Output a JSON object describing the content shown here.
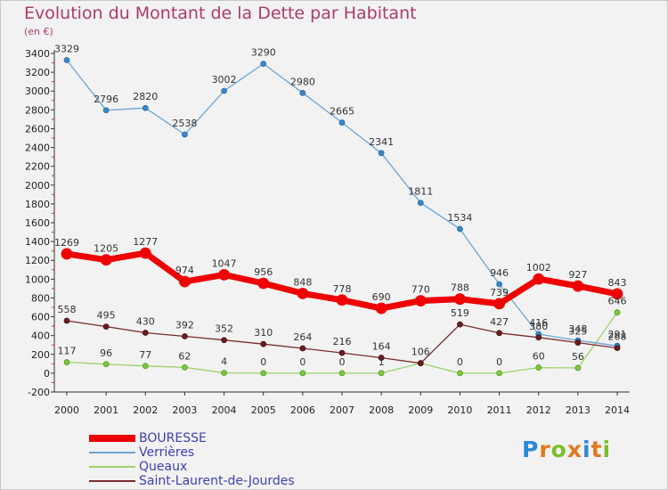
{
  "title": "Evolution du Montant de la Dette par Habitant",
  "subtitle": "(en €)",
  "logo": {
    "letters": [
      "P",
      "r",
      "o",
      "x",
      "i",
      "t",
      "i"
    ],
    "colors": [
      "#2b8ad6",
      "#e07a1f",
      "#7bbf2a",
      "#e07a1f",
      "#2b8ad6",
      "#e07a1f",
      "#7bbf2a"
    ]
  },
  "chart_data": {
    "type": "line",
    "x": [
      2000,
      2001,
      2002,
      2003,
      2004,
      2005,
      2006,
      2007,
      2008,
      2009,
      2010,
      2011,
      2012,
      2013,
      2014
    ],
    "x_tick_labels": [
      "2000",
      "2001",
      "2002",
      "2003",
      "2004",
      "2005",
      "2006",
      "2007",
      "2008",
      "2009",
      "2010",
      "2011",
      "2012",
      "2013",
      "2014"
    ],
    "ylim": [
      -200,
      3400
    ],
    "y_ticks": [
      -200,
      0,
      200,
      400,
      600,
      800,
      1000,
      1200,
      1400,
      1600,
      1800,
      2000,
      2200,
      2400,
      2600,
      2800,
      3000,
      3200,
      3400
    ],
    "y_tick_labels": [
      "-200",
      "0",
      "200",
      "400",
      "600",
      "800",
      "1000",
      "1200",
      "1400",
      "1600",
      "1800",
      "2000",
      "2200",
      "2400",
      "2600",
      "2800",
      "3000",
      "3200",
      "3400"
    ],
    "grid": false,
    "legend_position": "bottom-left",
    "series": [
      {
        "name": "BOURESSE",
        "color": "#ee0000",
        "values": [
          1269,
          1205,
          1277,
          974,
          1047,
          956,
          848,
          778,
          690,
          770,
          788,
          739,
          1002,
          927,
          843
        ],
        "labels": [
          "1269",
          "1205",
          "1277",
          "974",
          "1047",
          "956",
          "848",
          "778",
          "690",
          "770",
          "788",
          "739",
          "1002",
          "927",
          "843"
        ]
      },
      {
        "name": "Verrières",
        "color": "#6aa6d6",
        "values": [
          3329,
          2796,
          2820,
          2538,
          3002,
          3290,
          2980,
          2665,
          2341,
          1811,
          1534,
          946,
          416,
          348,
          291
        ],
        "labels": [
          "3329",
          "2796",
          "2820",
          "2538",
          "3002",
          "3290",
          "2980",
          "2665",
          "2341",
          "1811",
          "1534",
          "946",
          "416",
          "348",
          "291"
        ]
      },
      {
        "name": "Queaux",
        "color": "#9ad46a",
        "values": [
          117,
          96,
          77,
          62,
          4,
          0,
          0,
          0,
          1,
          106,
          0,
          0,
          60,
          56,
          646
        ],
        "labels": [
          "117",
          "96",
          "77",
          "62",
          "4",
          "0",
          "0",
          "0",
          "1",
          "106",
          "0",
          "0",
          "60",
          "56",
          "646"
        ]
      },
      {
        "name": "Saint-Laurent-de-Jourdes",
        "color": "#7a2c2c",
        "values": [
          558,
          495,
          430,
          392,
          352,
          310,
          264,
          216,
          164,
          106,
          519,
          427,
          380,
          325,
          268
        ],
        "labels": [
          "558",
          "495",
          "430",
          "392",
          "352",
          "310",
          "264",
          "216",
          "164",
          "",
          "519",
          "427",
          "380",
          "325",
          "268"
        ]
      }
    ]
  }
}
